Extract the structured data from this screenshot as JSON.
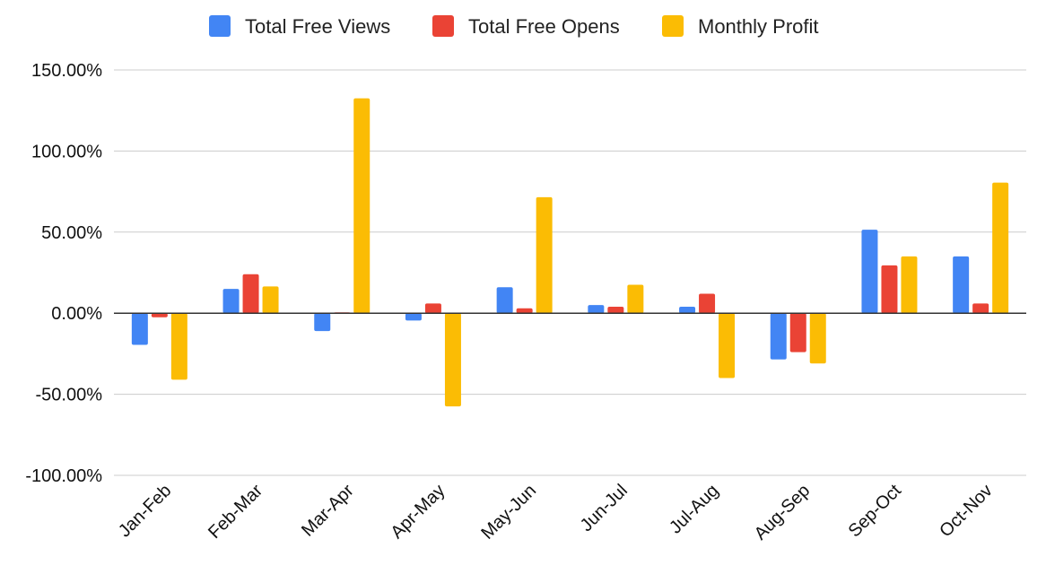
{
  "chart_data": {
    "type": "bar",
    "title": "",
    "xlabel": "",
    "ylabel": "",
    "categories": [
      "Jan-Feb",
      "Feb-Mar",
      "Mar-Apr",
      "Apr-May",
      "May-Jun",
      "Jun-Jul",
      "Jul-Aug",
      "Aug-Sep",
      "Sep-Oct",
      "Oct-Nov"
    ],
    "series": [
      {
        "name": "Total Free Views",
        "color": "#4285F4",
        "values": [
          -19.5,
          15.0,
          -11.0,
          -4.5,
          16.0,
          5.0,
          4.0,
          -28.5,
          51.5,
          35.0
        ]
      },
      {
        "name": "Total Free Opens",
        "color": "#EA4335",
        "values": [
          -2.5,
          24.0,
          0.5,
          6.0,
          3.0,
          4.0,
          12.0,
          -24.0,
          29.5,
          6.0
        ]
      },
      {
        "name": "Monthly Profit",
        "color": "#FBBC04",
        "values": [
          -41.0,
          16.5,
          132.5,
          -57.5,
          71.5,
          17.5,
          -40.0,
          -31.0,
          35.0,
          80.5
        ]
      }
    ],
    "ylim": [
      -100,
      150
    ],
    "yticks": [
      150,
      100,
      50,
      0,
      -50,
      -100
    ],
    "ytick_labels": [
      "150.00%",
      "100.00%",
      "50.00%",
      "0.00%",
      "-50.00%",
      "-100.00%"
    ],
    "grid": true,
    "legend_position": "top"
  }
}
